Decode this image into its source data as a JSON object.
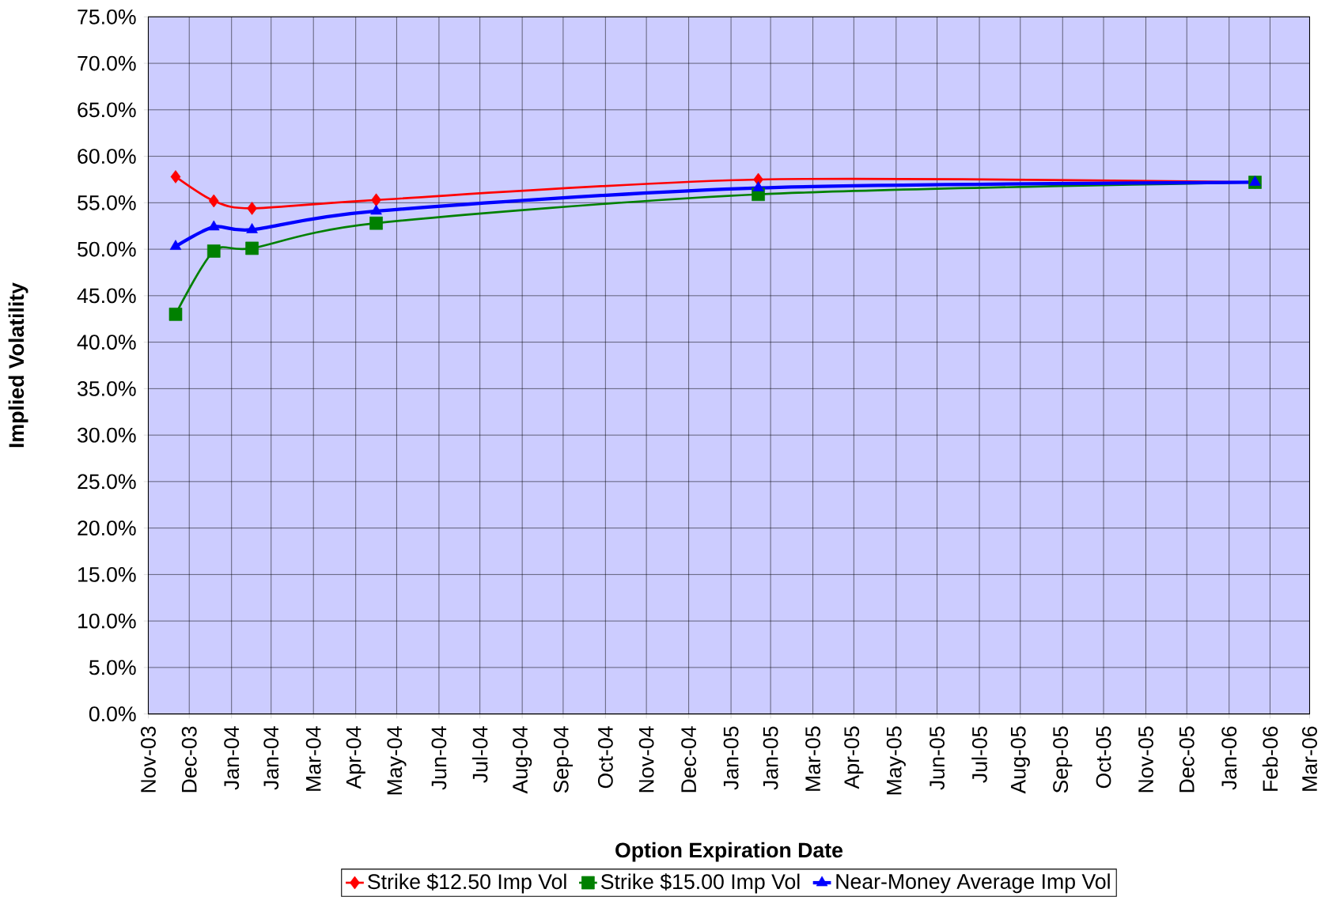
{
  "chart_data": {
    "type": "line",
    "xlabel": "Option Expiration Date",
    "ylabel": "Implied Volatility",
    "x": [
      "2003-11-22",
      "2003-12-20",
      "2004-01-17",
      "2004-04-17",
      "2005-01-22",
      "2006-01-21"
    ],
    "series": [
      {
        "name": "Strike $12.50 Imp Vol",
        "color": "#ff0000",
        "marker": "diamond",
        "values": [
          57.8,
          55.2,
          54.4,
          55.3,
          57.5,
          57.2
        ]
      },
      {
        "name": "Strike $15.00 Imp Vol",
        "color": "#008000",
        "marker": "square",
        "values": [
          43.0,
          49.8,
          50.1,
          52.8,
          55.9,
          57.2
        ]
      },
      {
        "name": "Near-Money Average Imp Vol",
        "color": "#0000ff",
        "marker": "triangle",
        "values": [
          50.3,
          52.4,
          52.1,
          54.1,
          56.6,
          57.2
        ]
      }
    ],
    "xlim": [
      "2003-11-02",
      "2006-03-02"
    ],
    "xticks": [
      {
        "value": "2003-11-02",
        "label": "Nov-03"
      },
      {
        "value": "2003-12-02",
        "label": "Dec-03"
      },
      {
        "value": "2004-01-02",
        "label": "Jan-04"
      },
      {
        "value": "2004-01-31",
        "label": "Jan-04"
      },
      {
        "value": "2004-03-02",
        "label": "Mar-04"
      },
      {
        "value": "2004-04-02",
        "label": "Apr-04"
      },
      {
        "value": "2004-05-02",
        "label": "May-04"
      },
      {
        "value": "2004-06-02",
        "label": "Jun-04"
      },
      {
        "value": "2004-07-02",
        "label": "Jul-04"
      },
      {
        "value": "2004-08-02",
        "label": "Aug-04"
      },
      {
        "value": "2004-09-01",
        "label": "Sep-04"
      },
      {
        "value": "2004-10-02",
        "label": "Oct-04"
      },
      {
        "value": "2004-11-01",
        "label": "Nov-04"
      },
      {
        "value": "2004-12-02",
        "label": "Dec-04"
      },
      {
        "value": "2005-01-02",
        "label": "Jan-05"
      },
      {
        "value": "2005-01-31",
        "label": "Jan-05"
      },
      {
        "value": "2005-03-03",
        "label": "Mar-05"
      },
      {
        "value": "2005-04-02",
        "label": "Apr-05"
      },
      {
        "value": "2005-05-03",
        "label": "May-05"
      },
      {
        "value": "2005-06-02",
        "label": "Jun-05"
      },
      {
        "value": "2005-07-03",
        "label": "Jul-05"
      },
      {
        "value": "2005-08-02",
        "label": "Aug-05"
      },
      {
        "value": "2005-09-02",
        "label": "Sep-05"
      },
      {
        "value": "2005-10-02",
        "label": "Oct-05"
      },
      {
        "value": "2005-11-02",
        "label": "Nov-05"
      },
      {
        "value": "2005-12-02",
        "label": "Dec-05"
      },
      {
        "value": "2006-01-02",
        "label": "Jan-06"
      },
      {
        "value": "2006-02-01",
        "label": "Feb-06"
      },
      {
        "value": "2006-03-02",
        "label": "Mar-06"
      }
    ],
    "ylim": [
      0,
      75
    ],
    "yticks": [
      {
        "value": 0,
        "label": "0.0%"
      },
      {
        "value": 5,
        "label": "5.0%"
      },
      {
        "value": 10,
        "label": "10.0%"
      },
      {
        "value": 15,
        "label": "15.0%"
      },
      {
        "value": 20,
        "label": "20.0%"
      },
      {
        "value": 25,
        "label": "25.0%"
      },
      {
        "value": 30,
        "label": "30.0%"
      },
      {
        "value": 35,
        "label": "35.0%"
      },
      {
        "value": 40,
        "label": "40.0%"
      },
      {
        "value": 45,
        "label": "45.0%"
      },
      {
        "value": 50,
        "label": "50.0%"
      },
      {
        "value": 55,
        "label": "55.0%"
      },
      {
        "value": 60,
        "label": "60.0%"
      },
      {
        "value": 65,
        "label": "65.0%"
      },
      {
        "value": 70,
        "label": "70.0%"
      },
      {
        "value": 75,
        "label": "75.0%"
      }
    ],
    "grid": true,
    "legend": "bottom",
    "line_style": "solid"
  }
}
